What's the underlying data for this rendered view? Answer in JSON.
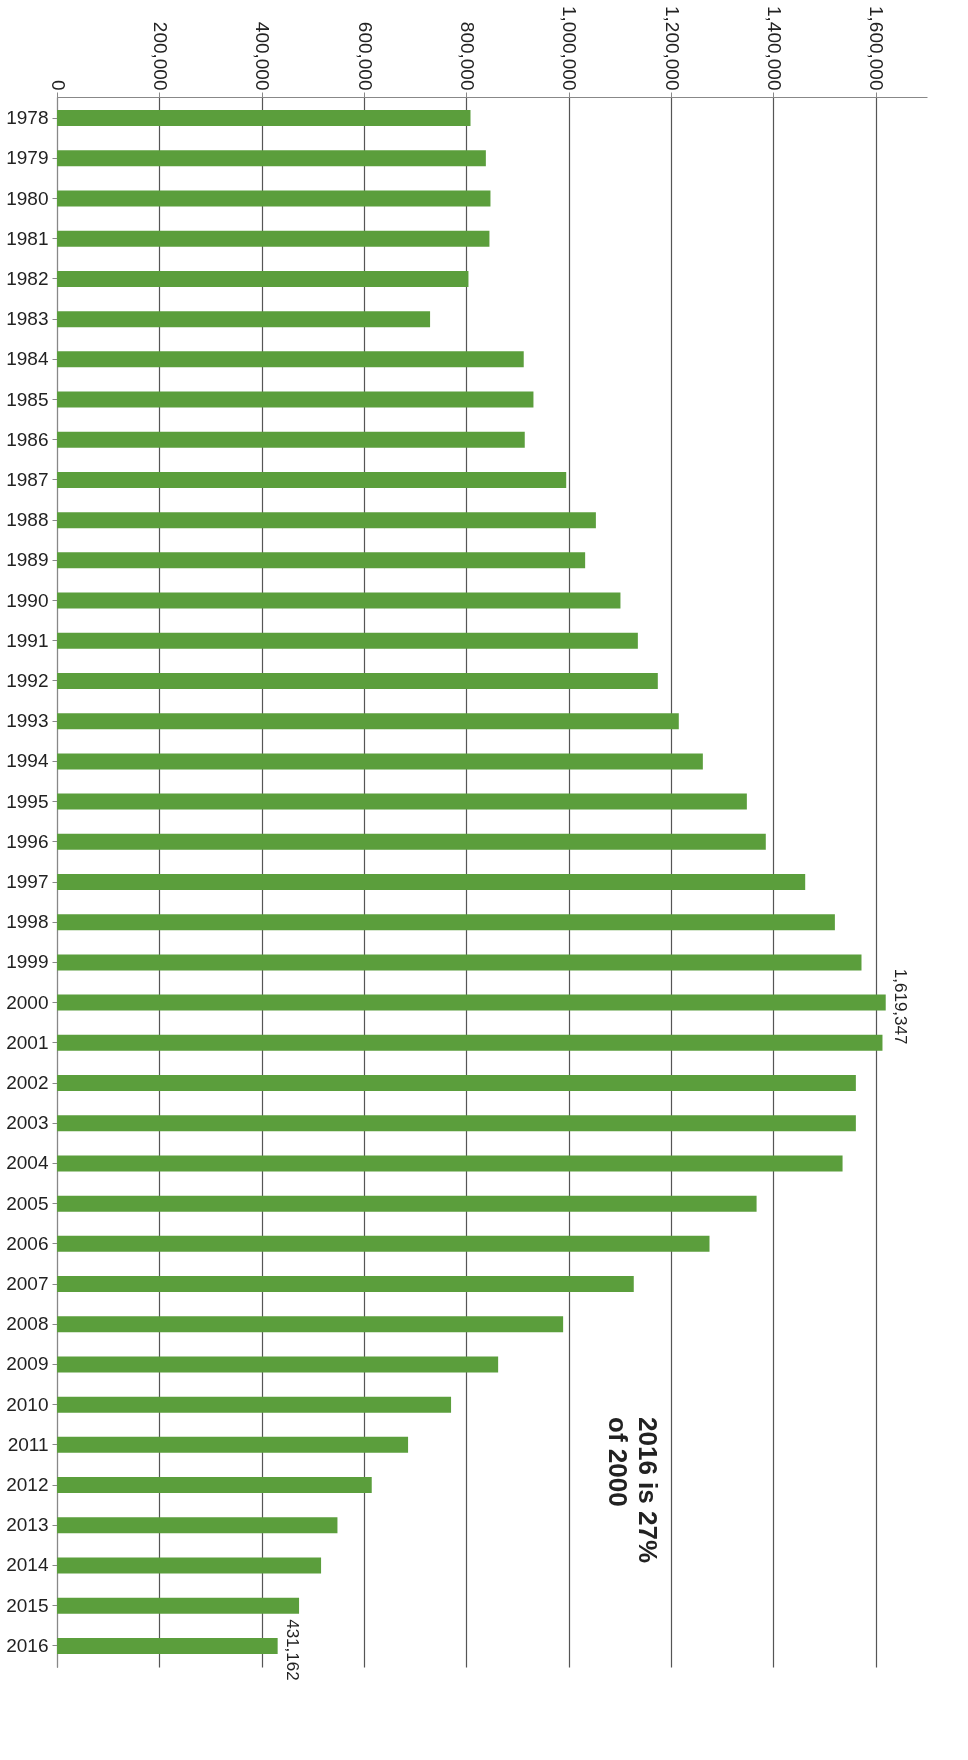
{
  "chart_data": {
    "type": "bar",
    "orientation": "horizontal",
    "categories": [
      "1978",
      "1979",
      "1980",
      "1981",
      "1982",
      "1983",
      "1984",
      "1985",
      "1986",
      "1987",
      "1988",
      "1989",
      "1990",
      "1991",
      "1992",
      "1993",
      "1994",
      "1995",
      "1996",
      "1997",
      "1998",
      "1999",
      "2000",
      "2001",
      "2002",
      "2003",
      "2004",
      "2005",
      "2006",
      "2007",
      "2008",
      "2009",
      "2010",
      "2011",
      "2012",
      "2013",
      "2014",
      "2015",
      "2016"
    ],
    "values": [
      808000,
      838000,
      847000,
      845000,
      804000,
      729000,
      912000,
      931000,
      914000,
      995000,
      1053000,
      1032000,
      1101000,
      1135000,
      1174000,
      1215000,
      1262000,
      1348000,
      1385000,
      1462000,
      1520000,
      1572000,
      1619347,
      1613000,
      1561000,
      1561000,
      1535000,
      1367000,
      1275000,
      1127000,
      989000,
      862000,
      770000,
      686000,
      615000,
      548000,
      516000,
      473000,
      431162
    ],
    "value_labels": [
      null,
      null,
      null,
      null,
      null,
      null,
      null,
      null,
      null,
      null,
      null,
      null,
      null,
      null,
      null,
      null,
      null,
      null,
      null,
      null,
      null,
      null,
      "1,619,347",
      null,
      null,
      null,
      null,
      null,
      null,
      null,
      null,
      null,
      null,
      null,
      null,
      null,
      null,
      null,
      "431,162"
    ],
    "color": "#5b9e3c",
    "xlim": [
      0,
      1700000
    ],
    "xticks": [
      0,
      {
        "value": 200000,
        "label": "200,000"
      },
      {
        "value": 400000,
        "label": "400,000"
      },
      {
        "value": 600000,
        "label": "600,000"
      },
      {
        "value": 800000,
        "label": "800,000"
      },
      {
        "value": 1000000,
        "label": "1,000,000"
      },
      {
        "value": 1200000,
        "label": "1,200,000"
      },
      {
        "value": 1400000,
        "label": "1,400,000"
      },
      {
        "value": 1600000,
        "label": "1,600,000"
      }
    ],
    "grid": "x",
    "annotations": [
      "2016 is 27%\nof 2000"
    ]
  }
}
